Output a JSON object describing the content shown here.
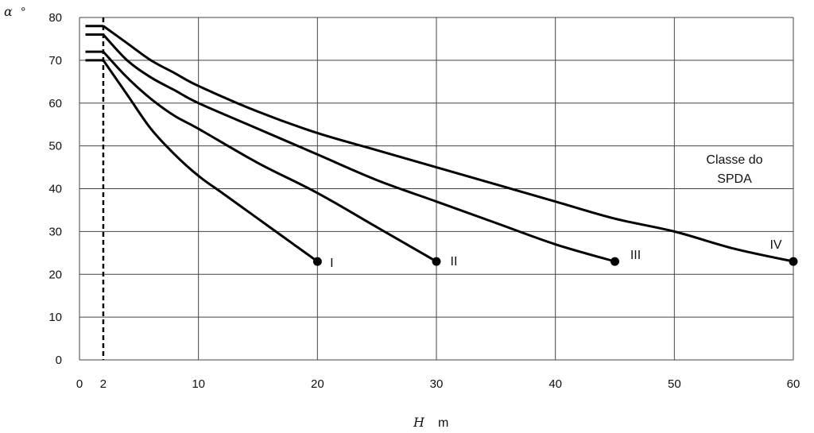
{
  "chart_data": {
    "type": "line",
    "title": "",
    "ylabel_symbol": "α",
    "ylabel_unit": "°",
    "xlabel_symbol": "H",
    "xlabel_unit": "m",
    "xlim": [
      0,
      60
    ],
    "ylim": [
      0,
      80
    ],
    "x_ticks": [
      0,
      2,
      10,
      20,
      30,
      40,
      50,
      60
    ],
    "y_ticks": [
      0,
      10,
      20,
      30,
      40,
      50,
      60,
      70,
      80
    ],
    "grid": true,
    "reference_line_x": 2,
    "legend_title_lines": [
      "Classe do",
      "SPDA"
    ],
    "series": [
      {
        "name": "I",
        "x": [
          0,
          2,
          4,
          6,
          8,
          10,
          12,
          14,
          16,
          18,
          20
        ],
        "y": [
          70,
          70,
          62,
          54,
          48,
          43,
          39,
          35,
          31,
          27,
          23
        ]
      },
      {
        "name": "II",
        "x": [
          0,
          2,
          4,
          6,
          8,
          10,
          15,
          20,
          25,
          30
        ],
        "y": [
          72,
          72,
          66,
          61,
          57,
          54,
          46,
          39,
          31,
          23
        ]
      },
      {
        "name": "III",
        "x": [
          0,
          2,
          4,
          6,
          8,
          10,
          15,
          20,
          25,
          30,
          35,
          40,
          45
        ],
        "y": [
          76,
          76,
          70,
          66,
          63,
          60,
          54,
          48,
          42,
          37,
          32,
          27,
          23
        ]
      },
      {
        "name": "IV",
        "x": [
          0,
          2,
          4,
          6,
          8,
          10,
          15,
          20,
          25,
          30,
          35,
          40,
          45,
          50,
          55,
          60
        ],
        "y": [
          78,
          78,
          74,
          70,
          67,
          64,
          58,
          53,
          49,
          45,
          41,
          37,
          33,
          30,
          26,
          23
        ]
      }
    ]
  }
}
